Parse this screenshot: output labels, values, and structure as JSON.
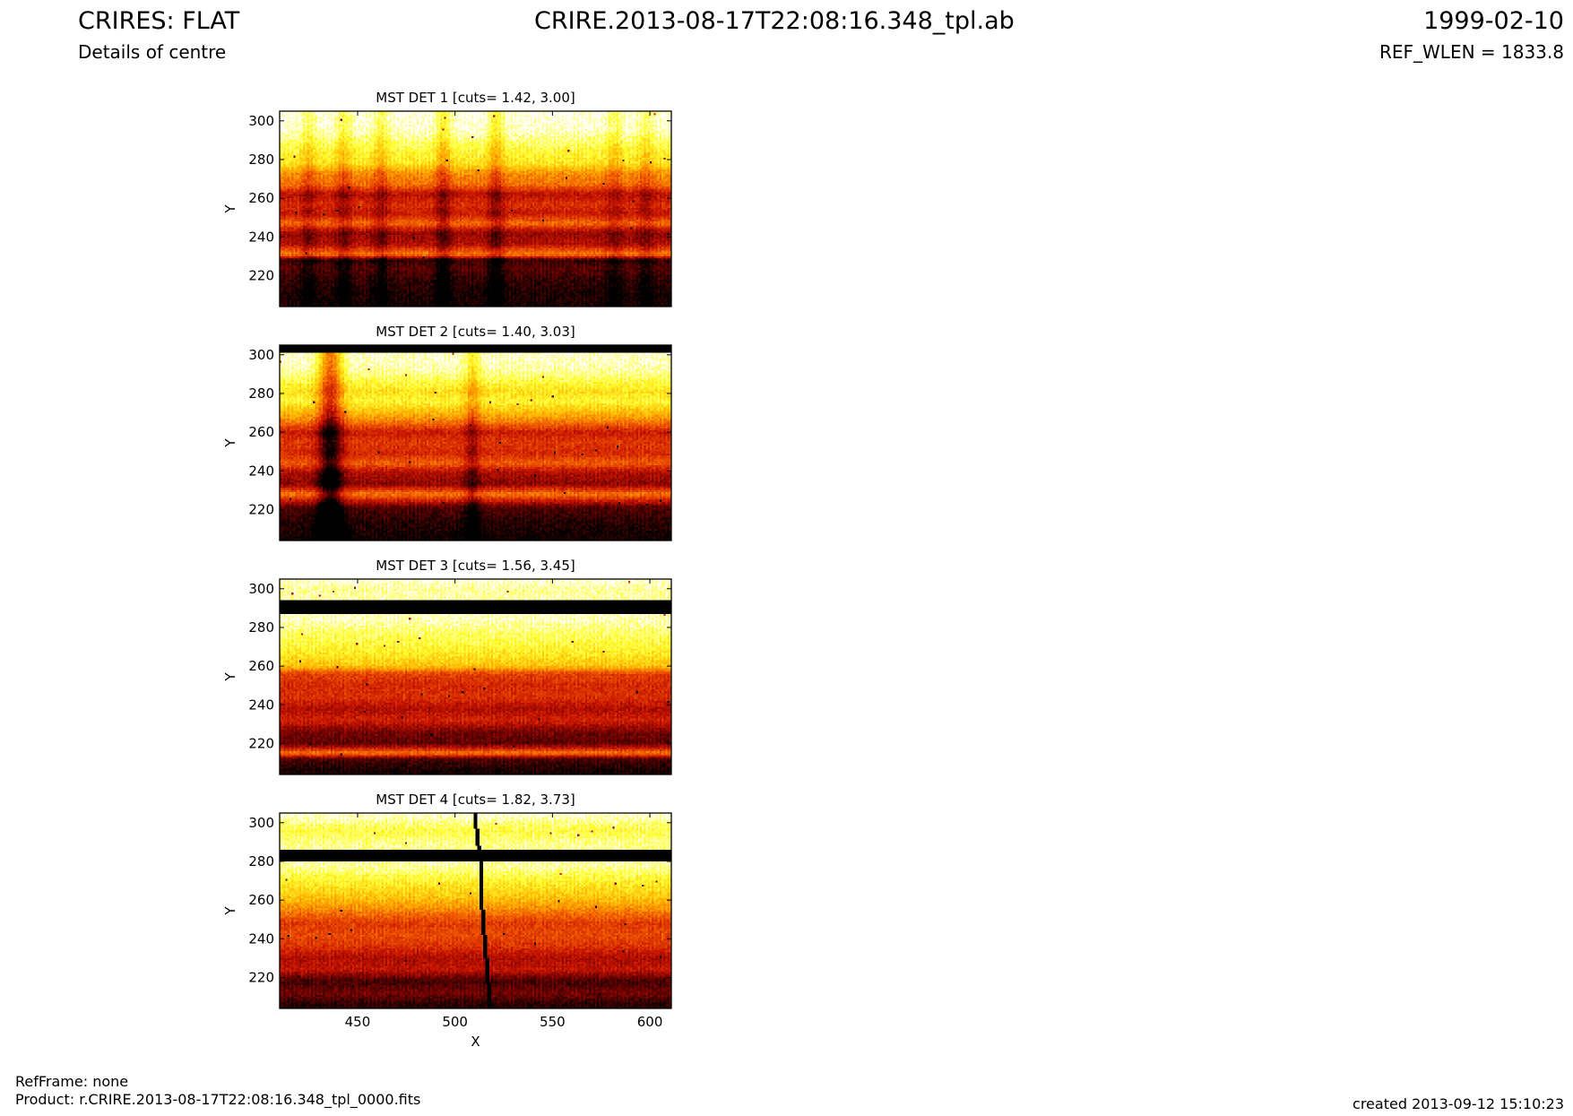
{
  "header": {
    "title_left": "CRIRES: FLAT",
    "title_center": "CRIRE.2013-08-17T22:08:16.348_tpl.ab",
    "title_right": "1999-02-10",
    "subtitle_left": "Details of centre",
    "subtitle_right": "REF_WLEN = 1833.8"
  },
  "footer": {
    "refframe": "RefFrame: none",
    "product": "Product: r.CRIRE.2013-08-17T22:08:16.348_tpl_0000.fits",
    "created": "created 2013-09-12 15:10:23"
  },
  "colors": {
    "ramp": [
      "#000000",
      "#6a0000",
      "#c81400",
      "#f05a00",
      "#ffb400",
      "#ffff30",
      "#ffffff"
    ]
  },
  "chart_data": [
    {
      "type": "heatmap",
      "title": "MST DET 1 [cuts= 1.42, 3.00]",
      "colormap": "hot",
      "ylabel": "Y",
      "xlabel": "",
      "xlim": [
        410,
        611
      ],
      "ylim": [
        204,
        305
      ],
      "x_ticks": [
        450,
        500,
        550,
        600
      ],
      "y_ticks": [
        220,
        240,
        260,
        280,
        300
      ],
      "show_x_ticklabels": false,
      "row_profile": [
        {
          "y": 210,
          "level": 0.06
        },
        {
          "y": 218,
          "level": 0.1
        },
        {
          "y": 224,
          "level": 0.16
        },
        {
          "y": 228,
          "level": 0.1
        },
        {
          "y": 231,
          "level": 0.6
        },
        {
          "y": 236,
          "level": 0.32
        },
        {
          "y": 242,
          "level": 0.26
        },
        {
          "y": 247,
          "level": 0.55
        },
        {
          "y": 252,
          "level": 0.36
        },
        {
          "y": 257,
          "level": 0.42
        },
        {
          "y": 262,
          "level": 0.32
        },
        {
          "y": 267,
          "level": 0.56
        },
        {
          "y": 273,
          "level": 0.62
        },
        {
          "y": 278,
          "level": 0.8
        },
        {
          "y": 284,
          "level": 0.84
        },
        {
          "y": 289,
          "level": 0.9
        },
        {
          "y": 295,
          "level": 0.98
        },
        {
          "y": 305,
          "level": 1.0
        }
      ],
      "dark_columns": [
        {
          "x": 425,
          "width": 4,
          "depth": 0.1
        },
        {
          "x": 443,
          "width": 4,
          "depth": 0.12
        },
        {
          "x": 462,
          "width": 4,
          "depth": 0.12
        },
        {
          "x": 494,
          "width": 4,
          "depth": 0.16
        },
        {
          "x": 521,
          "width": 4,
          "depth": 0.16
        },
        {
          "x": 582,
          "width": 4,
          "depth": 0.1
        },
        {
          "x": 598,
          "width": 4,
          "depth": 0.1
        }
      ],
      "masked_bands": []
    },
    {
      "type": "heatmap",
      "title": "MST DET 2 [cuts= 1.40, 3.03]",
      "colormap": "hot",
      "ylabel": "Y",
      "xlabel": "",
      "xlim": [
        410,
        611
      ],
      "ylim": [
        204,
        305
      ],
      "x_ticks": [
        450,
        500,
        550,
        600
      ],
      "y_ticks": [
        220,
        240,
        260,
        280,
        300
      ],
      "show_x_ticklabels": false,
      "row_profile": [
        {
          "y": 206,
          "level": 0.04
        },
        {
          "y": 214,
          "level": 0.08
        },
        {
          "y": 221,
          "level": 0.14
        },
        {
          "y": 228,
          "level": 0.58
        },
        {
          "y": 233,
          "level": 0.24
        },
        {
          "y": 239,
          "level": 0.3
        },
        {
          "y": 244,
          "level": 0.52
        },
        {
          "y": 249,
          "level": 0.4
        },
        {
          "y": 255,
          "level": 0.44
        },
        {
          "y": 260,
          "level": 0.36
        },
        {
          "y": 266,
          "level": 0.6
        },
        {
          "y": 271,
          "level": 0.72
        },
        {
          "y": 276,
          "level": 0.84
        },
        {
          "y": 281,
          "level": 0.78
        },
        {
          "y": 286,
          "level": 0.86
        },
        {
          "y": 292,
          "level": 0.95
        },
        {
          "y": 305,
          "level": 1.0
        }
      ],
      "dark_columns": [
        {
          "x": 436,
          "width": 6,
          "depth": 0.4
        },
        {
          "x": 509,
          "width": 4,
          "depth": 0.16
        }
      ],
      "masked_bands": [
        {
          "y_from": 301,
          "y_to": 305
        }
      ]
    },
    {
      "type": "heatmap",
      "title": "MST DET 3 [cuts= 1.56, 3.45]",
      "colormap": "hot",
      "ylabel": "Y",
      "xlabel": "",
      "xlim": [
        410,
        611
      ],
      "ylim": [
        204,
        305
      ],
      "x_ticks": [
        450,
        500,
        550,
        600
      ],
      "y_ticks": [
        220,
        240,
        260,
        280,
        300
      ],
      "show_x_ticklabels": false,
      "row_profile": [
        {
          "y": 206,
          "level": 0.05
        },
        {
          "y": 212,
          "level": 0.14
        },
        {
          "y": 215,
          "level": 0.58
        },
        {
          "y": 220,
          "level": 0.16
        },
        {
          "y": 226,
          "level": 0.2
        },
        {
          "y": 232,
          "level": 0.38
        },
        {
          "y": 238,
          "level": 0.3
        },
        {
          "y": 244,
          "level": 0.42
        },
        {
          "y": 250,
          "level": 0.4
        },
        {
          "y": 256,
          "level": 0.46
        },
        {
          "y": 260,
          "level": 0.72
        },
        {
          "y": 266,
          "level": 0.8
        },
        {
          "y": 272,
          "level": 0.86
        },
        {
          "y": 278,
          "level": 0.9
        },
        {
          "y": 284,
          "level": 0.97
        },
        {
          "y": 300,
          "level": 0.94
        },
        {
          "y": 305,
          "level": 1.0
        }
      ],
      "dark_columns": [],
      "masked_bands": [
        {
          "y_from": 287,
          "y_to": 294
        }
      ]
    },
    {
      "type": "heatmap",
      "title": "MST DET 4 [cuts= 1.82, 3.73]",
      "colormap": "hot",
      "ylabel": "Y",
      "xlabel": "X",
      "xlim": [
        410,
        611
      ],
      "ylim": [
        204,
        305
      ],
      "x_ticks": [
        450,
        500,
        550,
        600
      ],
      "y_ticks": [
        220,
        240,
        260,
        280,
        300
      ],
      "show_x_ticklabels": true,
      "row_profile": [
        {
          "y": 206,
          "level": 0.08
        },
        {
          "y": 212,
          "level": 0.2
        },
        {
          "y": 218,
          "level": 0.12
        },
        {
          "y": 224,
          "level": 0.34
        },
        {
          "y": 230,
          "level": 0.3
        },
        {
          "y": 236,
          "level": 0.42
        },
        {
          "y": 242,
          "level": 0.48
        },
        {
          "y": 248,
          "level": 0.44
        },
        {
          "y": 254,
          "level": 0.58
        },
        {
          "y": 260,
          "level": 0.7
        },
        {
          "y": 266,
          "level": 0.78
        },
        {
          "y": 272,
          "level": 0.86
        },
        {
          "y": 278,
          "level": 0.95
        },
        {
          "y": 290,
          "level": 0.92
        },
        {
          "y": 296,
          "level": 0.86
        },
        {
          "y": 305,
          "level": 1.0
        }
      ],
      "dark_columns": [],
      "masked_bands": [
        {
          "y_from": 280,
          "y_to": 286
        }
      ],
      "streak": [
        {
          "x": 510,
          "y": 305
        },
        {
          "x": 513,
          "y": 280
        },
        {
          "x": 514,
          "y": 255
        },
        {
          "x": 516,
          "y": 230
        },
        {
          "x": 518,
          "y": 204
        }
      ]
    }
  ]
}
